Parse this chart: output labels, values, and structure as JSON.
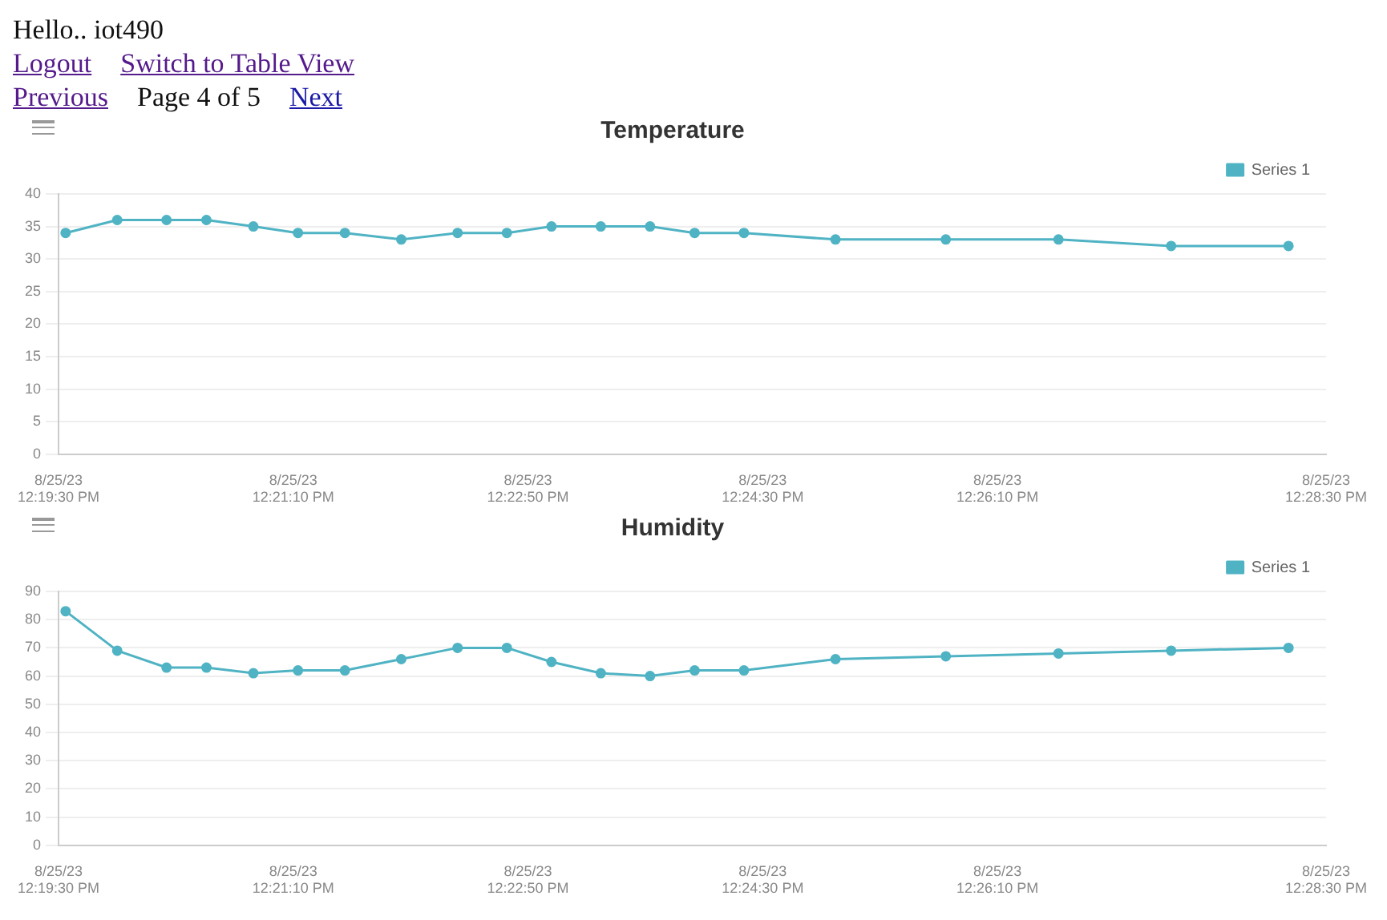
{
  "chart_data": [
    {
      "type": "line",
      "title": "Temperature",
      "annotations": [
        "Hello.. iot490",
        "Logout",
        "Switch to Table View",
        "Previous",
        "Page 4 of 5",
        "Next"
      ],
      "series": [
        {
          "name": "Series 1",
          "color": "#4fb3c4",
          "x": [
            "--08-25T12:19:33",
            "--08-25T12:19:55",
            "--08-25T12:20:16",
            "--08-25T12:20:33",
            "--08-25T12:20:53",
            "--08-25T12:21:12",
            "--08-25T12:21:32",
            "--08-25T12:21:56",
            "--08-25T12:22:20",
            "--08-25T12:22:41",
            "--08-25T12:23:00",
            "--08-25T12:23:21",
            "--08-25T12:23:42",
            "--08-25T12:24:01",
            "--08-25T12:24:22",
            "--08-25T12:25:01",
            "--08-25T12:25:48",
            "--08-25T12:26:36",
            "--08-25T12:27:24",
            "--08-25T12:28:14"
          ],
          "values": [
            34,
            36,
            36,
            36,
            35,
            34,
            34,
            33,
            34,
            34,
            35,
            35,
            35,
            34,
            34,
            33,
            33,
            33,
            32,
            32
          ]
        }
      ],
      "xlim": [
        "--08-25T12:19:30",
        "--08-25T12:28:30"
      ],
      "xticks": [
        {
          "value": "--08-25T12:19:30",
          "label": "8/25/23 12:19:30 PM"
        },
        {
          "value": "--08-25T12:21:10",
          "label": "8/25/23 12:21:10 PM"
        },
        {
          "value": "--08-25T12:22:50",
          "label": "8/25/23 12:22:50 PM"
        },
        {
          "value": "--08-25T12:24:30",
          "label": "8/25/23 12:24:30 PM"
        },
        {
          "value": "--08-25T12:26:10",
          "label": "8/25/23 12:26:10 PM"
        },
        {
          "value": "--08-25T12:28:30",
          "label": "8/25/23 12:28:30 PM"
        }
      ],
      "ylim": [
        0,
        40
      ],
      "yticks": [
        0,
        5,
        10,
        15,
        20,
        25,
        30,
        35,
        40
      ],
      "grid": "y",
      "legend": "top right",
      "marker": "circle",
      "line_style": "solid"
    },
    {
      "type": "line",
      "title": "Humidity",
      "series": [
        {
          "name": "Series 1",
          "color": "#4fb3c4",
          "x": [
            "--08-25T12:19:33",
            "--08-25T12:19:55",
            "--08-25T12:20:16",
            "--08-25T12:20:33",
            "--08-25T12:20:53",
            "--08-25T12:21:12",
            "--08-25T12:21:32",
            "--08-25T12:21:56",
            "--08-25T12:22:20",
            "--08-25T12:22:41",
            "--08-25T12:23:00",
            "--08-25T12:23:21",
            "--08-25T12:23:42",
            "--08-25T12:24:01",
            "--08-25T12:24:22",
            "--08-25T12:25:01",
            "--08-25T12:25:48",
            "--08-25T12:26:36",
            "--08-25T12:27:24",
            "--08-25T12:28:14"
          ],
          "values": [
            83,
            69,
            63,
            63,
            61,
            62,
            62,
            66,
            70,
            70,
            65,
            61,
            60,
            62,
            62,
            66,
            67,
            68,
            69,
            70
          ]
        }
      ],
      "xlim": [
        "--08-25T12:19:30",
        "--08-25T12:28:30"
      ],
      "xticks": [
        {
          "value": "--08-25T12:19:30",
          "label": "8/25/23 12:19:30 PM"
        },
        {
          "value": "--08-25T12:21:10",
          "label": "8/25/23 12:21:10 PM"
        },
        {
          "value": "--08-25T12:22:50",
          "label": "8/25/23 12:22:50 PM"
        },
        {
          "value": "--08-25T12:24:30",
          "label": "8/25/23 12:24:30 PM"
        },
        {
          "value": "--08-25T12:26:10",
          "label": "8/25/23 12:26:10 PM"
        },
        {
          "value": "--08-25T12:28:30",
          "label": "8/25/23 12:28:30 PM"
        }
      ],
      "ylim": [
        0,
        90
      ],
      "yticks": [
        0,
        10,
        20,
        30,
        40,
        50,
        60,
        70,
        80,
        90
      ],
      "grid": "y",
      "legend": "top right",
      "marker": "circle",
      "line_style": "solid"
    }
  ]
}
